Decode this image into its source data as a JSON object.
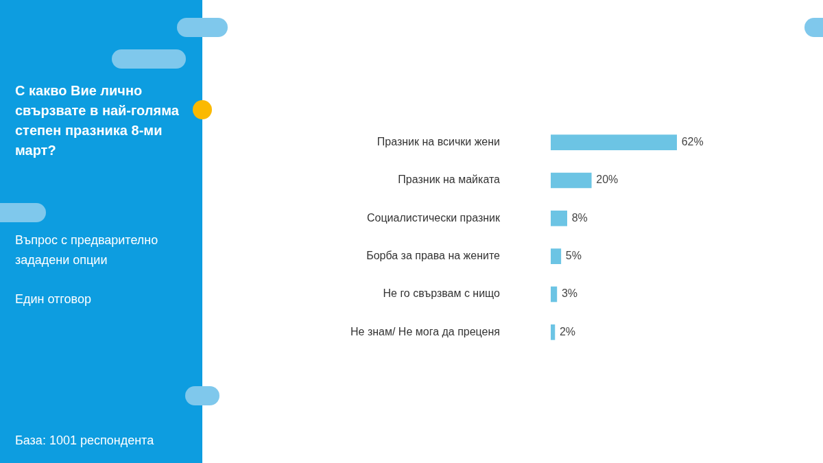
{
  "chart_data": {
    "type": "bar",
    "orientation": "horizontal",
    "title": "С какво Вие лично свързвате в най-голяма степен празника 8-ми март?",
    "annotations": [
      "Въпрос с предварително зададени опции",
      "Един отговор",
      "База:  1001 респондента"
    ],
    "categories": [
      "Празник на всички жени",
      "Празник на майката",
      "Социалистически празник",
      "Борба за права на жените",
      "Не го свързвам с нищо",
      "Не знам/ Не мога да преценя"
    ],
    "values": [
      62,
      20,
      8,
      5,
      3,
      2
    ],
    "value_labels": [
      "62%",
      "20%",
      "8%",
      "5%",
      "3%",
      "2%"
    ],
    "color": "#6cc4e4",
    "legend": false,
    "tick_labels": "y"
  }
}
